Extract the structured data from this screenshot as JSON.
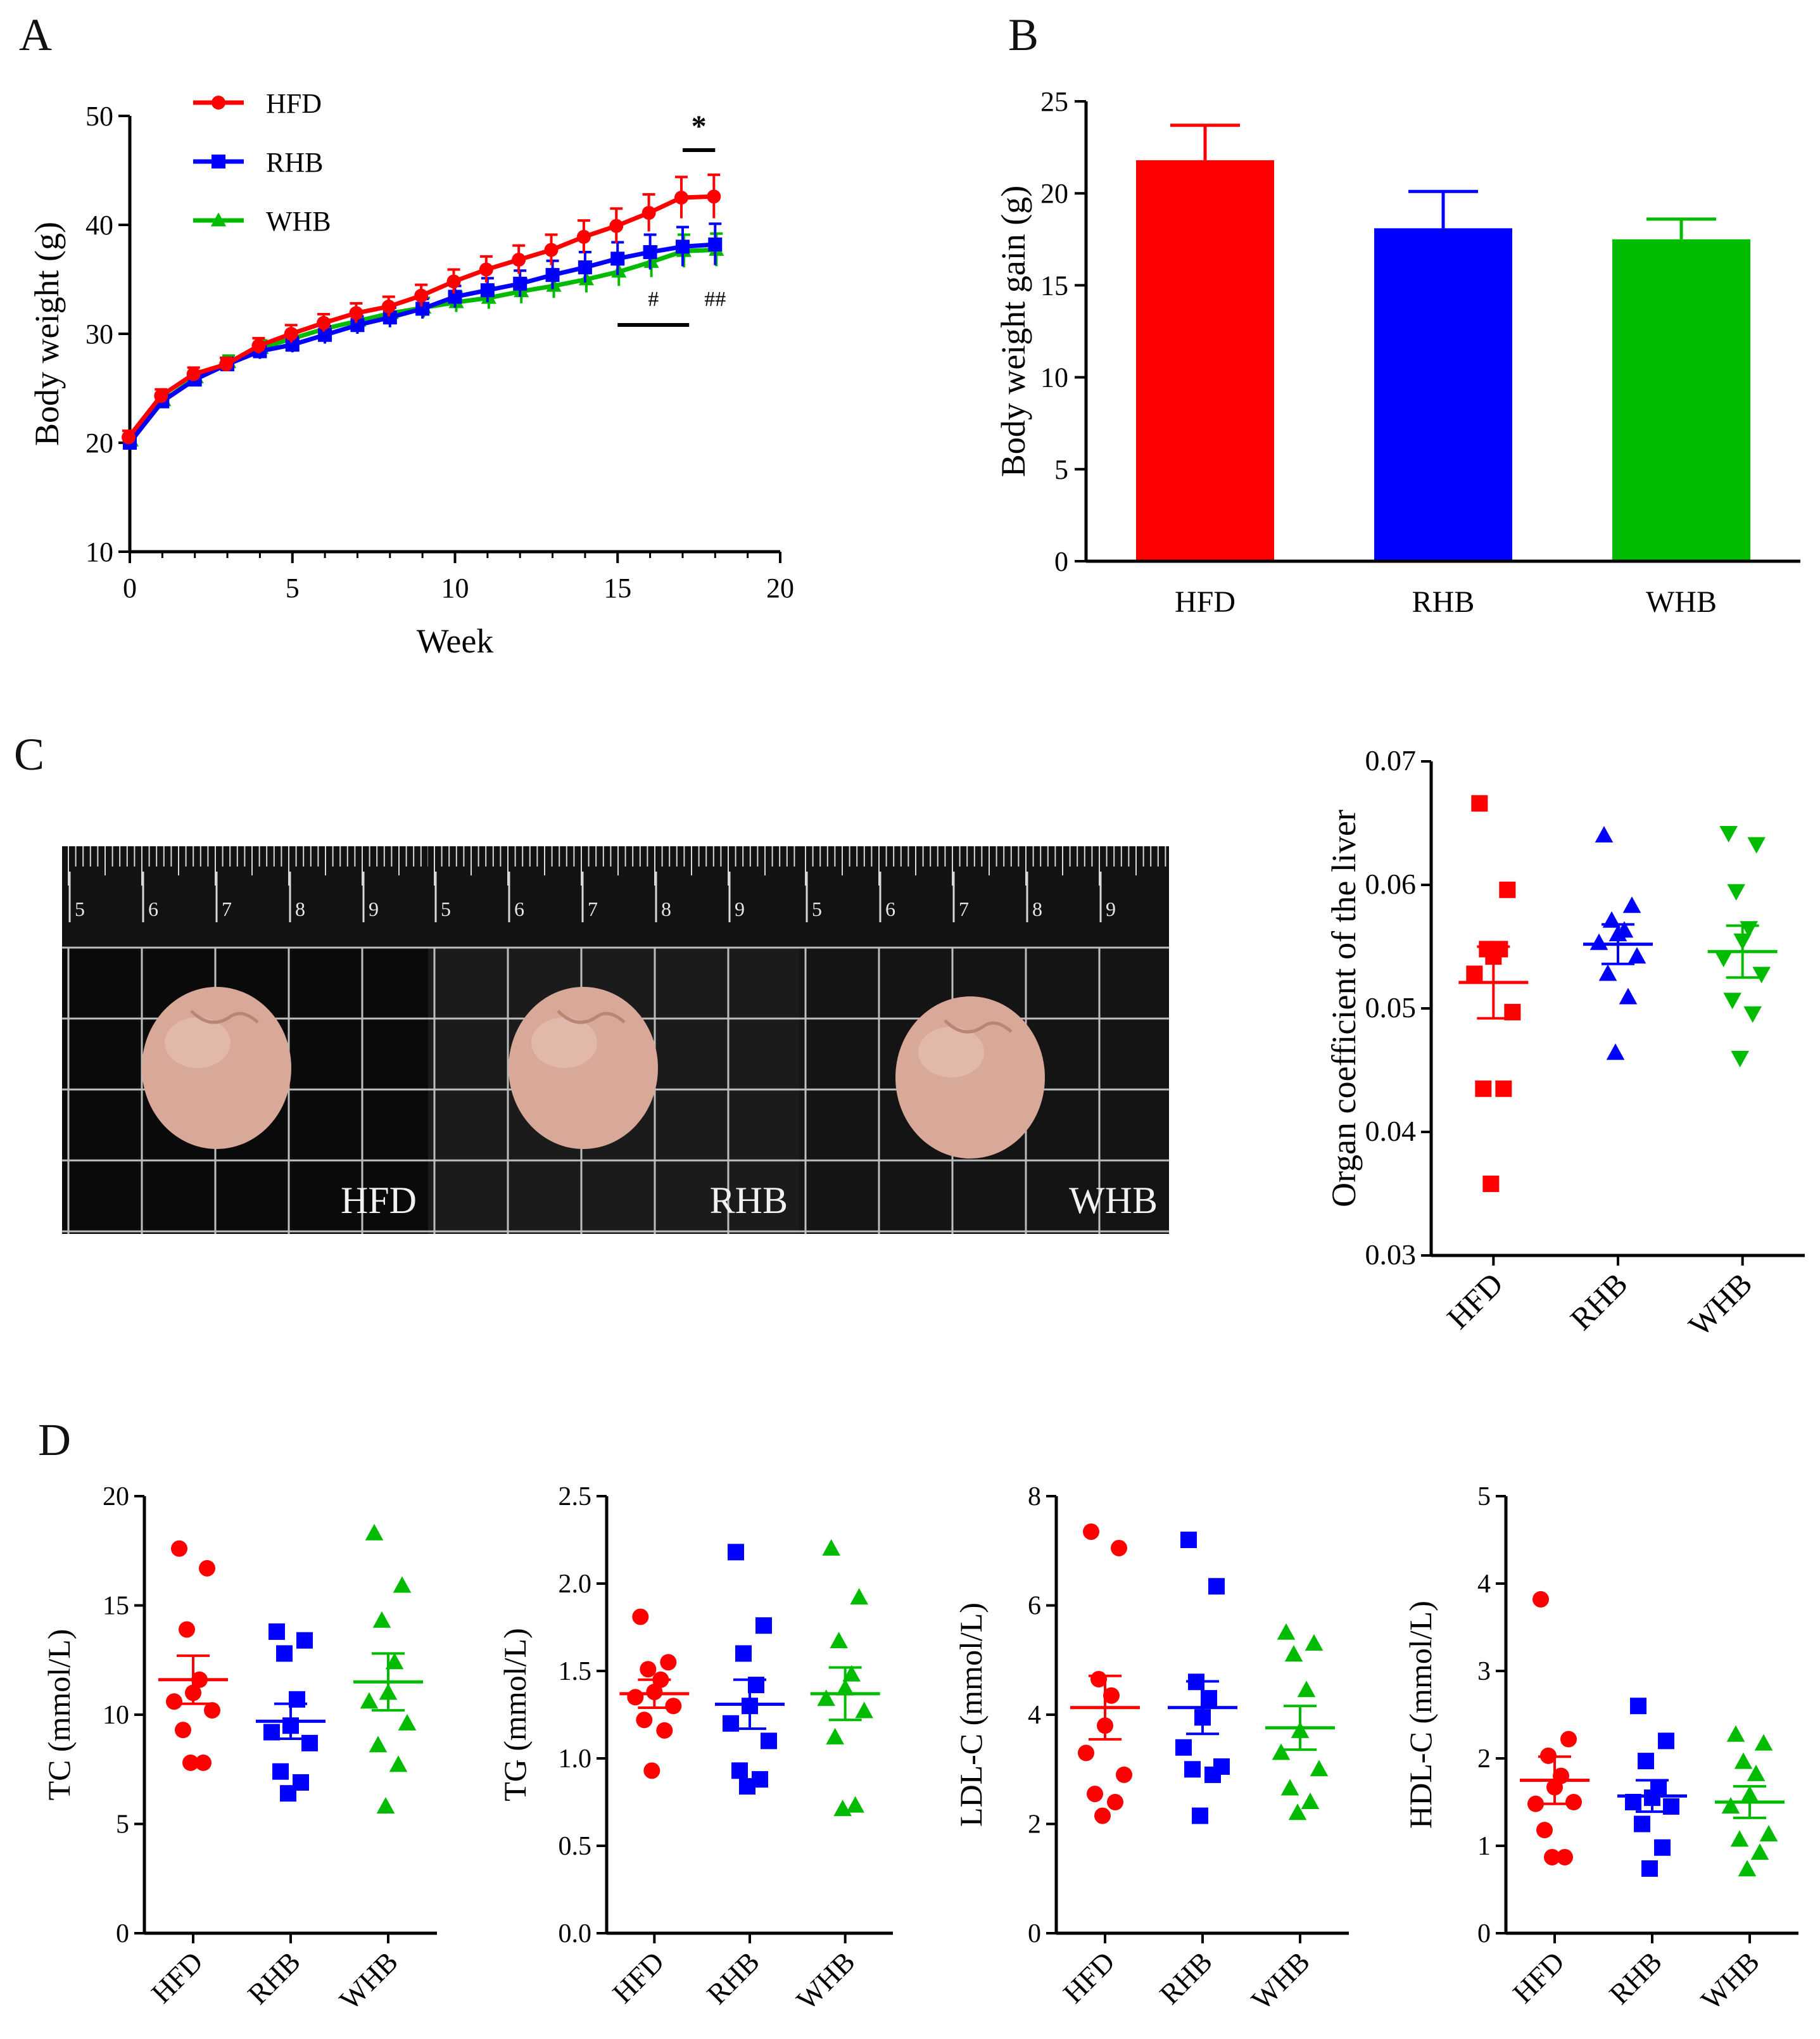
{
  "panels": {
    "a": "A",
    "b": "B",
    "c": "C",
    "d": "D"
  },
  "colors": {
    "HFD": "#ff0000",
    "RHB": "#0000ff",
    "WHB": "#00bb00"
  },
  "chart_data": [
    {
      "id": "A",
      "type": "line",
      "xlabel": "Week",
      "ylabel": "Body weight (g)",
      "xlim": [
        0,
        20
      ],
      "ylim": [
        10,
        50
      ],
      "xticks": [
        0,
        5,
        10,
        15,
        20
      ],
      "yticks": [
        10,
        20,
        30,
        40,
        50
      ],
      "legend": "top-left",
      "x": [
        0,
        1,
        2,
        3,
        4,
        5,
        6,
        7,
        8,
        9,
        10,
        11,
        12,
        13,
        14,
        15,
        16,
        17,
        18
      ],
      "series": [
        {
          "name": "HFD",
          "color": "#ff0000",
          "marker": "circle",
          "values": [
            20.5,
            24.3,
            26.3,
            27.2,
            28.9,
            30.0,
            31.0,
            31.9,
            32.5,
            33.5,
            34.8,
            35.9,
            36.8,
            37.7,
            38.9,
            39.9,
            41.1,
            42.5,
            42.6
          ],
          "errors": [
            0.6,
            0.6,
            0.6,
            0.6,
            0.7,
            0.8,
            0.8,
            0.9,
            0.9,
            1.0,
            1.1,
            1.2,
            1.3,
            1.4,
            1.5,
            1.6,
            1.7,
            1.9,
            2.0
          ]
        },
        {
          "name": "RHB",
          "color": "#0000ff",
          "marker": "square",
          "values": [
            20.0,
            23.8,
            25.8,
            27.2,
            28.4,
            29.0,
            29.9,
            30.8,
            31.5,
            32.3,
            33.4,
            34.0,
            34.6,
            35.4,
            36.1,
            36.9,
            37.5,
            38.0,
            38.2
          ],
          "errors": [
            0.6,
            0.6,
            0.6,
            0.6,
            0.7,
            0.7,
            0.8,
            0.8,
            0.9,
            0.9,
            1.0,
            1.1,
            1.2,
            1.3,
            1.4,
            1.5,
            1.6,
            1.8,
            1.9
          ]
        },
        {
          "name": "WHB",
          "color": "#00bb00",
          "marker": "triangle",
          "values": [
            20.2,
            23.9,
            26.0,
            27.4,
            28.7,
            29.6,
            30.5,
            31.2,
            31.9,
            32.4,
            32.9,
            33.3,
            33.9,
            34.4,
            35.0,
            35.7,
            36.6,
            37.6,
            37.7
          ],
          "errors": [
            0.6,
            0.6,
            0.6,
            0.6,
            0.7,
            0.7,
            0.8,
            0.8,
            0.8,
            0.9,
            0.9,
            1.0,
            1.1,
            1.1,
            1.2,
            1.3,
            1.4,
            1.5,
            1.5
          ]
        }
      ],
      "annotations": {
        "star": "*",
        "hash": "#",
        "double_hash": "##"
      }
    },
    {
      "id": "B",
      "type": "bar",
      "ylabel": "Body weight gain (g)",
      "ylim": [
        0,
        25
      ],
      "yticks": [
        0,
        5,
        10,
        15,
        20,
        25
      ],
      "categories": [
        "HFD",
        "RHB",
        "WHB"
      ],
      "values": [
        21.8,
        18.1,
        17.5
      ],
      "errors": [
        1.9,
        2.0,
        1.1
      ]
    },
    {
      "id": "C",
      "type": "scatter",
      "ylabel": "Organ coefficient of the liver",
      "ylim": [
        0.03,
        0.07
      ],
      "yticks": [
        0.03,
        0.04,
        0.05,
        0.06,
        0.07
      ],
      "ytick_labels": [
        "0.03",
        "0.04",
        "0.05",
        "0.06",
        "0.07"
      ],
      "categories": [
        "HFD",
        "RHB",
        "WHB"
      ],
      "markers": [
        "square",
        "triangle",
        "triangle-down"
      ],
      "groups": [
        {
          "points": [
            0.0666,
            0.0596,
            0.0548,
            0.0548,
            0.0542,
            0.0528,
            0.0497,
            0.0435,
            0.0435,
            0.0358
          ],
          "mean": 0.0521,
          "sem": 0.0029
        },
        {
          "points": [
            0.064,
            0.0583,
            0.0571,
            0.0563,
            0.056,
            0.0553,
            0.0542,
            0.0528,
            0.0509,
            0.0464
          ],
          "mean": 0.0552,
          "sem": 0.0016
        },
        {
          "points": [
            0.0642,
            0.0633,
            0.0595,
            0.0565,
            0.0555,
            0.0541,
            0.0528,
            0.0507,
            0.0496,
            0.046
          ],
          "mean": 0.0546,
          "sem": 0.0021
        }
      ]
    },
    {
      "id": "D1",
      "type": "scatter",
      "ylabel": "TC (mmol/L)",
      "ylim": [
        0,
        20
      ],
      "yticks": [
        0,
        5,
        10,
        15,
        20
      ],
      "ytick_labels": [
        "0",
        "5",
        "10",
        "15",
        "20"
      ],
      "categories": [
        "HFD",
        "RHB",
        "WHB"
      ],
      "markers": [
        "circle",
        "square",
        "triangle"
      ],
      "groups": [
        {
          "points": [
            17.6,
            16.7,
            13.9,
            11.6,
            11.0,
            10.6,
            10.2,
            9.3,
            7.8,
            7.8
          ],
          "mean": 11.6,
          "sem": 1.1
        },
        {
          "points": [
            13.8,
            13.4,
            12.8,
            10.7,
            9.5,
            9.2,
            8.7,
            7.4,
            6.9,
            6.4
          ],
          "mean": 9.7,
          "sem": 0.8
        },
        {
          "points": [
            18.3,
            15.9,
            14.3,
            12.4,
            11.0,
            10.6,
            9.6,
            8.6,
            7.7,
            5.8
          ],
          "mean": 11.5,
          "sem": 1.3
        }
      ]
    },
    {
      "id": "D2",
      "type": "scatter",
      "ylabel": "TG (mmol/L)",
      "ylim": [
        0,
        2.5
      ],
      "yticks": [
        0,
        0.5,
        1.0,
        1.5,
        2.0,
        2.5
      ],
      "ytick_labels": [
        "0.0",
        "0.5",
        "1.0",
        "1.5",
        "2.0",
        "2.5"
      ],
      "categories": [
        "HFD",
        "RHB",
        "WHB"
      ],
      "markers": [
        "circle",
        "square",
        "triangle"
      ],
      "groups": [
        {
          "points": [
            1.81,
            1.55,
            1.51,
            1.45,
            1.38,
            1.35,
            1.3,
            1.22,
            1.16,
            0.93
          ],
          "mean": 1.37,
          "sem": 0.08
        },
        {
          "points": [
            2.18,
            1.76,
            1.6,
            1.42,
            1.3,
            1.2,
            1.1,
            0.93,
            0.88,
            0.84
          ],
          "mean": 1.31,
          "sem": 0.14
        },
        {
          "points": [
            2.2,
            1.92,
            1.67,
            1.48,
            1.4,
            1.34,
            1.27,
            1.12,
            0.73,
            0.71
          ],
          "mean": 1.37,
          "sem": 0.15
        }
      ]
    },
    {
      "id": "D3",
      "type": "scatter",
      "ylabel": "LDL-C (mmol/L)",
      "ylim": [
        0,
        8
      ],
      "yticks": [
        0,
        2,
        4,
        6,
        8
      ],
      "ytick_labels": [
        "0",
        "2",
        "4",
        "6",
        "8"
      ],
      "categories": [
        "HFD",
        "RHB",
        "WHB"
      ],
      "markers": [
        "circle",
        "square",
        "triangle"
      ],
      "groups": [
        {
          "points": [
            7.35,
            7.05,
            4.65,
            4.35,
            3.8,
            3.3,
            2.9,
            2.55,
            2.4,
            2.15
          ],
          "mean": 4.13,
          "sem": 0.58
        },
        {
          "points": [
            7.2,
            6.35,
            4.6,
            4.3,
            3.95,
            3.4,
            3.05,
            3.0,
            2.9,
            2.15
          ],
          "mean": 4.13,
          "sem": 0.48
        },
        {
          "points": [
            5.5,
            5.3,
            5.1,
            4.45,
            3.7,
            3.3,
            3.0,
            2.65,
            2.4,
            2.2
          ],
          "mean": 3.76,
          "sem": 0.4
        }
      ]
    },
    {
      "id": "D4",
      "type": "scatter",
      "ylabel": "HDL-C (mmol/L)",
      "ylim": [
        0,
        5
      ],
      "yticks": [
        0,
        1,
        2,
        3,
        4,
        5
      ],
      "ytick_labels": [
        "0",
        "1",
        "2",
        "3",
        "4",
        "5"
      ],
      "categories": [
        "HFD",
        "RHB",
        "WHB"
      ],
      "markers": [
        "circle",
        "square",
        "triangle"
      ],
      "groups": [
        {
          "points": [
            3.82,
            2.22,
            2.03,
            1.8,
            1.67,
            1.48,
            1.5,
            1.18,
            0.87,
            0.87
          ],
          "mean": 1.75,
          "sem": 0.27
        },
        {
          "points": [
            2.6,
            2.2,
            1.97,
            1.66,
            1.55,
            1.5,
            1.45,
            1.25,
            0.98,
            0.74
          ],
          "mean": 1.57,
          "sem": 0.18
        },
        {
          "points": [
            2.27,
            2.17,
            1.96,
            1.82,
            1.58,
            1.45,
            1.13,
            1.07,
            0.92,
            0.73
          ],
          "mean": 1.5,
          "sem": 0.18
        }
      ]
    }
  ],
  "photo": {
    "ruler_numbers": [
      "5",
      "6",
      "7",
      "8",
      "9"
    ],
    "captions": [
      "HFD",
      "RHB",
      "WHB"
    ]
  }
}
